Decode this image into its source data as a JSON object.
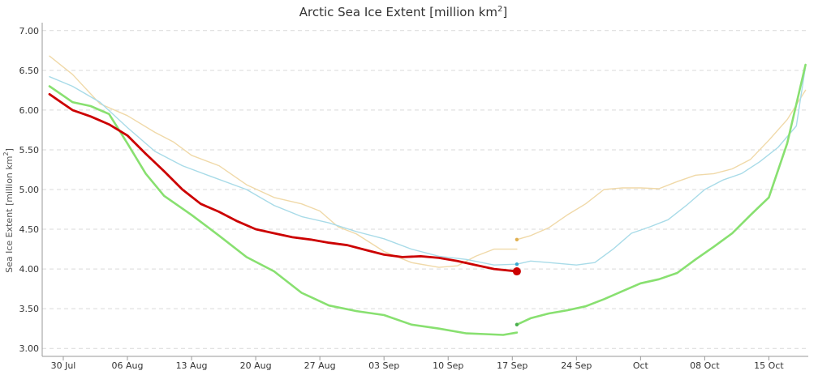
{
  "chart_data": {
    "type": "line",
    "title": "Arctic Sea Ice Extent [million km",
    "title_sup": "2",
    "title_close": "]",
    "ylabel": "Sea Ice Extent [million km",
    "ylabel_sup": "2",
    "ylabel_close": "]",
    "xlabel": "",
    "ylim": [
      2.9,
      7.1
    ],
    "xlim": [
      -2.3,
      81.3
    ],
    "y_ticks": [
      {
        "v": 3.0,
        "label": "3.00"
      },
      {
        "v": 3.5,
        "label": "3.50"
      },
      {
        "v": 4.0,
        "label": "4.00"
      },
      {
        "v": 4.5,
        "label": "4.50"
      },
      {
        "v": 5.0,
        "label": "5.00"
      },
      {
        "v": 5.5,
        "label": "5.50"
      },
      {
        "v": 6.0,
        "label": "6.00"
      },
      {
        "v": 6.5,
        "label": "6.50"
      },
      {
        "v": 7.0,
        "label": "7.00"
      }
    ],
    "x_ticks": [
      {
        "v": 0,
        "label": "30 Jul"
      },
      {
        "v": 7,
        "label": "06 Aug"
      },
      {
        "v": 14,
        "label": "13 Aug"
      },
      {
        "v": 21,
        "label": "20 Aug"
      },
      {
        "v": 28,
        "label": "27 Aug"
      },
      {
        "v": 35,
        "label": "03 Sep"
      },
      {
        "v": 42,
        "label": "10 Sep"
      },
      {
        "v": 49,
        "label": "17 Sep"
      },
      {
        "v": 56,
        "label": "24 Sep"
      },
      {
        "v": 63,
        "label": "Oct"
      },
      {
        "v": 70,
        "label": "08 Oct"
      },
      {
        "v": 77,
        "label": "15 Oct"
      }
    ],
    "grid": true,
    "colors": {
      "red": "#cc0000",
      "green": "#88e070",
      "blue": "#a8dbe8",
      "tan": "#f0d9a8",
      "grid": "#d9d9d9",
      "axis": "#999999"
    },
    "series": [
      {
        "color": "#f0d9a8",
        "width": 1.4,
        "x": [
          -1.5,
          1,
          4,
          7,
          10,
          12,
          14,
          17,
          20,
          23,
          26,
          28,
          30,
          32,
          35,
          38,
          41,
          43,
          45,
          47,
          49.5
        ],
        "y": [
          6.68,
          6.45,
          6.08,
          5.93,
          5.72,
          5.6,
          5.43,
          5.3,
          5.06,
          4.9,
          4.82,
          4.73,
          4.53,
          4.44,
          4.22,
          4.08,
          4.02,
          4.04,
          4.16,
          4.25,
          4.25
        ]
      },
      {
        "color": "#f0d9a8",
        "width": 1.4,
        "x": [
          49.5,
          51,
          53,
          55,
          57,
          59,
          61,
          63,
          65,
          67,
          69,
          71,
          73,
          75,
          77,
          79,
          81
        ],
        "y": [
          4.37,
          4.42,
          4.52,
          4.68,
          4.82,
          5.0,
          5.02,
          5.02,
          5.01,
          5.1,
          5.18,
          5.2,
          5.26,
          5.38,
          5.62,
          5.88,
          6.25
        ]
      },
      {
        "color": "#a8dbe8",
        "width": 1.4,
        "x": [
          -1.5,
          1,
          4,
          7,
          10,
          13,
          16,
          20,
          23,
          26,
          29,
          32,
          35,
          38,
          41,
          44,
          47,
          49.5
        ],
        "y": [
          6.42,
          6.3,
          6.1,
          5.78,
          5.48,
          5.3,
          5.17,
          5.0,
          4.8,
          4.66,
          4.58,
          4.47,
          4.38,
          4.25,
          4.16,
          4.12,
          4.05,
          4.06
        ]
      },
      {
        "color": "#a8dbe8",
        "width": 1.4,
        "x": [
          49.5,
          51,
          53,
          56,
          58,
          60,
          62,
          64,
          66,
          68,
          70,
          72,
          74,
          76,
          78,
          80,
          81
        ],
        "y": [
          4.06,
          4.1,
          4.08,
          4.05,
          4.08,
          4.25,
          4.45,
          4.53,
          4.62,
          4.8,
          5.0,
          5.12,
          5.2,
          5.35,
          5.53,
          5.8,
          6.55
        ]
      },
      {
        "color": "#88e070",
        "width": 2.6,
        "x": [
          -1.5,
          0,
          1,
          3,
          5,
          7,
          9,
          11,
          14,
          17,
          20,
          23,
          26,
          29,
          32,
          35,
          38,
          41,
          44,
          46,
          48,
          49.5
        ],
        "y": [
          6.3,
          6.18,
          6.1,
          6.05,
          5.95,
          5.58,
          5.2,
          4.92,
          4.68,
          4.42,
          4.15,
          3.97,
          3.7,
          3.54,
          3.47,
          3.42,
          3.3,
          3.25,
          3.19,
          3.18,
          3.17,
          3.2
        ]
      },
      {
        "color": "#88e070",
        "width": 2.6,
        "x": [
          49.5,
          51,
          53,
          55,
          57,
          59,
          61,
          63,
          65,
          67,
          69,
          71,
          73,
          75,
          77,
          79,
          81
        ],
        "y": [
          3.3,
          3.38,
          3.44,
          3.48,
          3.53,
          3.62,
          3.72,
          3.82,
          3.87,
          3.95,
          4.12,
          4.28,
          4.45,
          4.68,
          4.9,
          5.58,
          6.57
        ]
      },
      {
        "color": "#cc0000",
        "width": 2.8,
        "x": [
          -1.5,
          0,
          1,
          3,
          5,
          7,
          9,
          11,
          13,
          15,
          17,
          19,
          21,
          23,
          25,
          27,
          29,
          31,
          33,
          35,
          37,
          39,
          41,
          43,
          45,
          47,
          49.5
        ],
        "y": [
          6.2,
          6.08,
          6.0,
          5.92,
          5.82,
          5.68,
          5.45,
          5.23,
          5.0,
          4.82,
          4.72,
          4.6,
          4.5,
          4.45,
          4.4,
          4.37,
          4.33,
          4.3,
          4.24,
          4.18,
          4.15,
          4.16,
          4.14,
          4.1,
          4.05,
          4.0,
          3.97
        ]
      }
    ],
    "markers": [
      {
        "x": 49.5,
        "y": 4.37,
        "color": "#e0b050",
        "r": 2.2
      },
      {
        "x": 49.5,
        "y": 4.06,
        "color": "#3aa8d0",
        "r": 2.2
      },
      {
        "x": 49.5,
        "y": 3.3,
        "color": "#4caf50",
        "r": 2.2
      },
      {
        "x": 49.5,
        "y": 3.97,
        "color": "#cc0000",
        "r": 5
      }
    ]
  }
}
